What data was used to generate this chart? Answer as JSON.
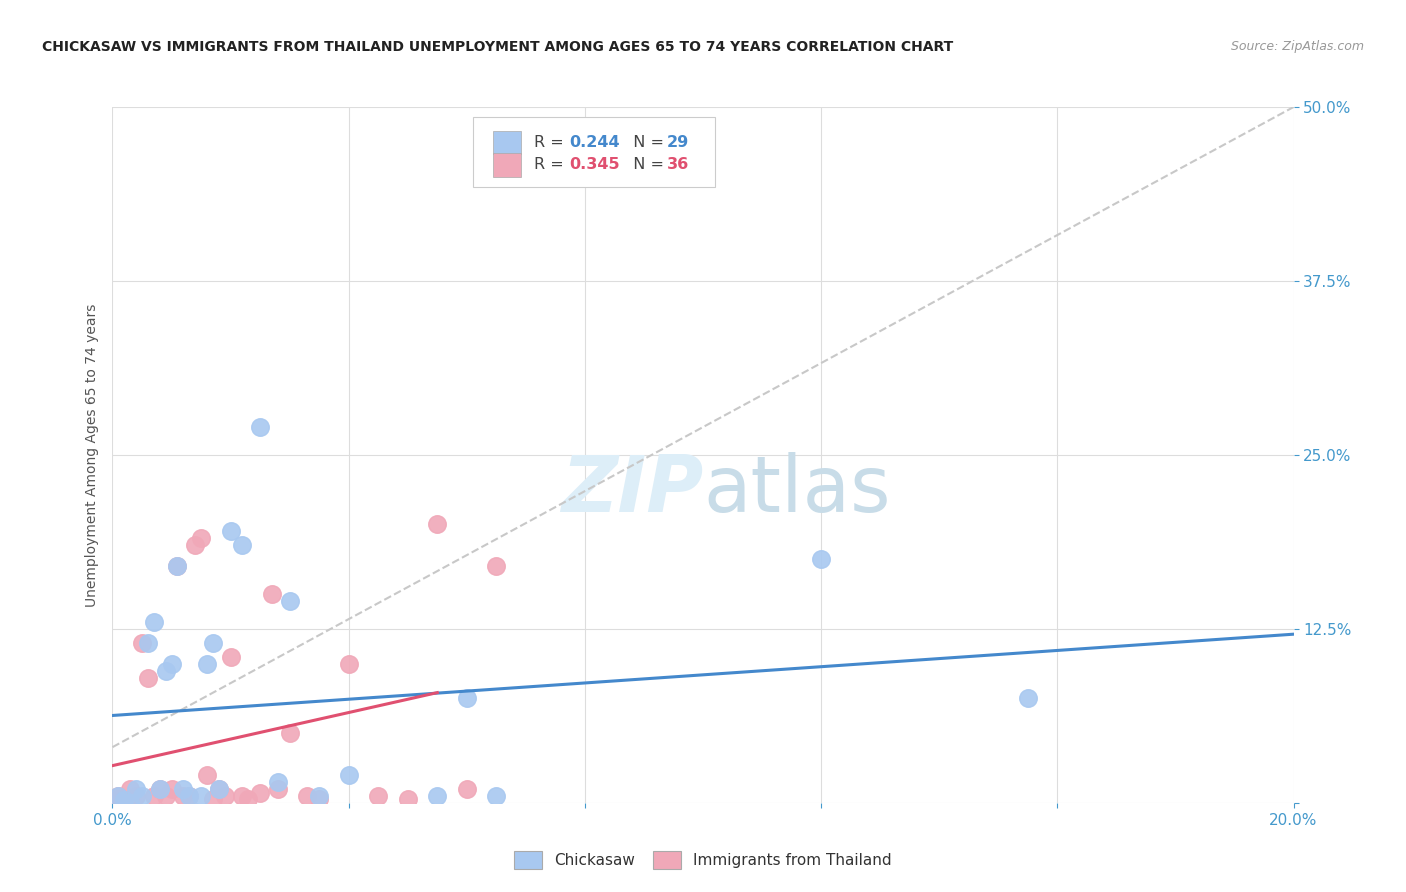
{
  "title": "CHICKASAW VS IMMIGRANTS FROM THAILAND UNEMPLOYMENT AMONG AGES 65 TO 74 YEARS CORRELATION CHART",
  "source": "Source: ZipAtlas.com",
  "ylabel": "Unemployment Among Ages 65 to 74 years",
  "xlim": [
    0.0,
    0.2
  ],
  "ylim": [
    0.0,
    0.5
  ],
  "xticks": [
    0.0,
    0.04,
    0.08,
    0.12,
    0.16,
    0.2
  ],
  "yticks": [
    0.0,
    0.125,
    0.25,
    0.375,
    0.5
  ],
  "ytick_labels": [
    "",
    "12.5%",
    "25.0%",
    "37.5%",
    "50.0%"
  ],
  "xtick_labels": [
    "0.0%",
    "",
    "",
    "",
    "",
    "20.0%"
  ],
  "chickasaw_R": 0.244,
  "chickasaw_N": 29,
  "thailand_R": 0.345,
  "thailand_N": 36,
  "chickasaw_color": "#a8c8f0",
  "thailand_color": "#f0a8b8",
  "trendline_chickasaw_color": "#4488cc",
  "trendline_thailand_color": "#e05070",
  "trendline_dashed_color": "#c8c8c8",
  "chickasaw_x": [
    0.001,
    0.002,
    0.003,
    0.004,
    0.005,
    0.006,
    0.007,
    0.008,
    0.009,
    0.01,
    0.011,
    0.012,
    0.013,
    0.015,
    0.016,
    0.017,
    0.018,
    0.02,
    0.022,
    0.025,
    0.028,
    0.03,
    0.035,
    0.04,
    0.055,
    0.06,
    0.065,
    0.12,
    0.155
  ],
  "chickasaw_y": [
    0.005,
    0.002,
    0.0,
    0.01,
    0.005,
    0.115,
    0.13,
    0.01,
    0.095,
    0.1,
    0.17,
    0.01,
    0.005,
    0.005,
    0.1,
    0.115,
    0.01,
    0.195,
    0.185,
    0.27,
    0.015,
    0.145,
    0.005,
    0.02,
    0.005,
    0.075,
    0.005,
    0.175,
    0.075
  ],
  "thailand_x": [
    0.001,
    0.001,
    0.002,
    0.003,
    0.003,
    0.004,
    0.005,
    0.006,
    0.007,
    0.008,
    0.009,
    0.01,
    0.011,
    0.012,
    0.013,
    0.014,
    0.015,
    0.016,
    0.017,
    0.018,
    0.019,
    0.02,
    0.022,
    0.023,
    0.025,
    0.027,
    0.028,
    0.03,
    0.033,
    0.035,
    0.04,
    0.045,
    0.05,
    0.055,
    0.06,
    0.065
  ],
  "thailand_y": [
    0.003,
    0.005,
    0.0,
    0.002,
    0.01,
    0.005,
    0.115,
    0.09,
    0.005,
    0.01,
    0.005,
    0.01,
    0.17,
    0.005,
    0.005,
    0.185,
    0.19,
    0.02,
    0.003,
    0.01,
    0.005,
    0.105,
    0.005,
    0.003,
    0.007,
    0.15,
    0.01,
    0.05,
    0.005,
    0.003,
    0.1,
    0.005,
    0.003,
    0.2,
    0.01,
    0.17
  ],
  "background_color": "#ffffff",
  "grid_color": "#dddddd",
  "title_color": "#222222",
  "axis_label_color": "#555555",
  "tick_color": "#4499cc",
  "watermark_color": "#ddeef8"
}
